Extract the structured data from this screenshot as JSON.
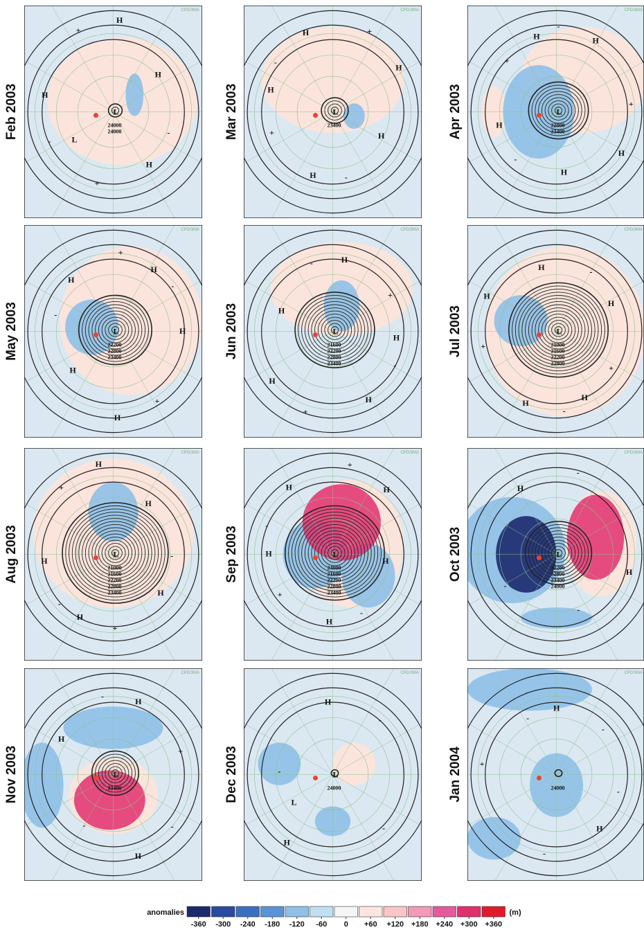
{
  "panels": [
    {
      "label": "Feb 2003",
      "watermark": "CPD/3MA",
      "contour_labels": [
        "24000",
        "24000"
      ],
      "markers": [
        "L",
        "L",
        "H",
        "H",
        "H",
        "H",
        "+",
        "+",
        "-",
        "-"
      ]
    },
    {
      "label": "Mar 2003",
      "watermark": "CPD/3MA",
      "contour_labels": [
        "23400"
      ],
      "markers": [
        "L",
        "H",
        "H",
        "H",
        "H",
        "H",
        "+",
        "+",
        "-",
        "-"
      ]
    },
    {
      "label": "Apr 2003",
      "watermark": "CPD/3MA",
      "contour_labels": [
        "22800",
        "23400"
      ],
      "markers": [
        "L",
        "H",
        "H",
        "H",
        "H",
        "H",
        "+",
        "+",
        "-",
        "-"
      ]
    },
    {
      "label": "May 2003",
      "watermark": "CPD/3MA",
      "contour_labels": [
        "22200",
        "22800",
        "23400"
      ],
      "markers": [
        "L",
        "H",
        "H",
        "H",
        "H",
        "H",
        "+",
        "+",
        "-",
        "-"
      ]
    },
    {
      "label": "Jun 2003",
      "watermark": "CPD/3MA",
      "contour_labels": [
        "21600",
        "22200",
        "22800",
        "23400"
      ],
      "markers": [
        "L",
        "H",
        "H",
        "H",
        "H",
        "H",
        "+",
        "+",
        "-",
        "-"
      ]
    },
    {
      "label": "Jul 2003",
      "watermark": "CPD/3MA",
      "contour_labels": [
        "21000",
        "21600",
        "22200",
        "22800"
      ],
      "markers": [
        "L",
        "H",
        "H",
        "H",
        "H",
        "H",
        "+",
        "+",
        "-",
        "-"
      ]
    },
    {
      "label": "Aug 2003",
      "watermark": "CPD/3MA",
      "contour_labels": [
        "21000",
        "21600",
        "22200",
        "22800",
        "23400"
      ],
      "markers": [
        "L",
        "H",
        "H",
        "H",
        "H",
        "H",
        "+",
        "+",
        "-",
        "-"
      ]
    },
    {
      "label": "Sep 2003",
      "watermark": "CPD/3MA",
      "contour_labels": [
        "24000",
        "21600",
        "22200",
        "22800",
        "23400"
      ],
      "markers": [
        "L",
        "H",
        "H",
        "H",
        "H",
        "H",
        "+",
        "+",
        "-",
        "-"
      ]
    },
    {
      "label": "Oct 2003",
      "watermark": "CPD/3MA",
      "contour_labels": [
        "22200",
        "22800",
        "23400",
        "24000"
      ],
      "markers": [
        "L",
        "H",
        "H",
        "-",
        "-",
        "-"
      ]
    },
    {
      "label": "Nov 2003",
      "watermark": "CPD/3MA",
      "contour_labels": [
        "23400"
      ],
      "markers": [
        "L",
        "H",
        "H",
        "H",
        "+",
        "-",
        "-",
        "-"
      ]
    },
    {
      "label": "Dec 2003",
      "watermark": "CPD/3MA",
      "contour_labels": [
        "24000"
      ],
      "markers": [
        "L",
        "L",
        "H",
        "H",
        "-",
        "-",
        "-"
      ]
    },
    {
      "label": "Jan 2004",
      "watermark": "CPD/3MA",
      "contour_labels": [
        "24000"
      ],
      "markers": [
        "H",
        "H",
        "+",
        "-",
        "-",
        "-",
        "-"
      ]
    }
  ],
  "colorbar": {
    "title": "anomalies",
    "unit": "(m)",
    "ticks": [
      -360,
      -300,
      -240,
      -180,
      -120,
      -60,
      0,
      {
        "value": 60,
        "label": "+60"
      },
      {
        "value": 120,
        "label": "+120"
      },
      {
        "value": 180,
        "label": "+180"
      },
      {
        "value": 240,
        "label": "+240"
      },
      {
        "value": 300,
        "label": "+300"
      },
      {
        "value": 360,
        "label": "+360"
      }
    ],
    "colors": [
      "#1c2a6e",
      "#2a4aa0",
      "#3b6fc0",
      "#5a94d6",
      "#8ec0e8",
      "#c0e0f2",
      "#f4f6f8",
      "#fde6e0",
      "#f9c6c8",
      "#f29ab6",
      "#e55a9c",
      "#e0306e",
      "#e01c2a"
    ]
  }
}
